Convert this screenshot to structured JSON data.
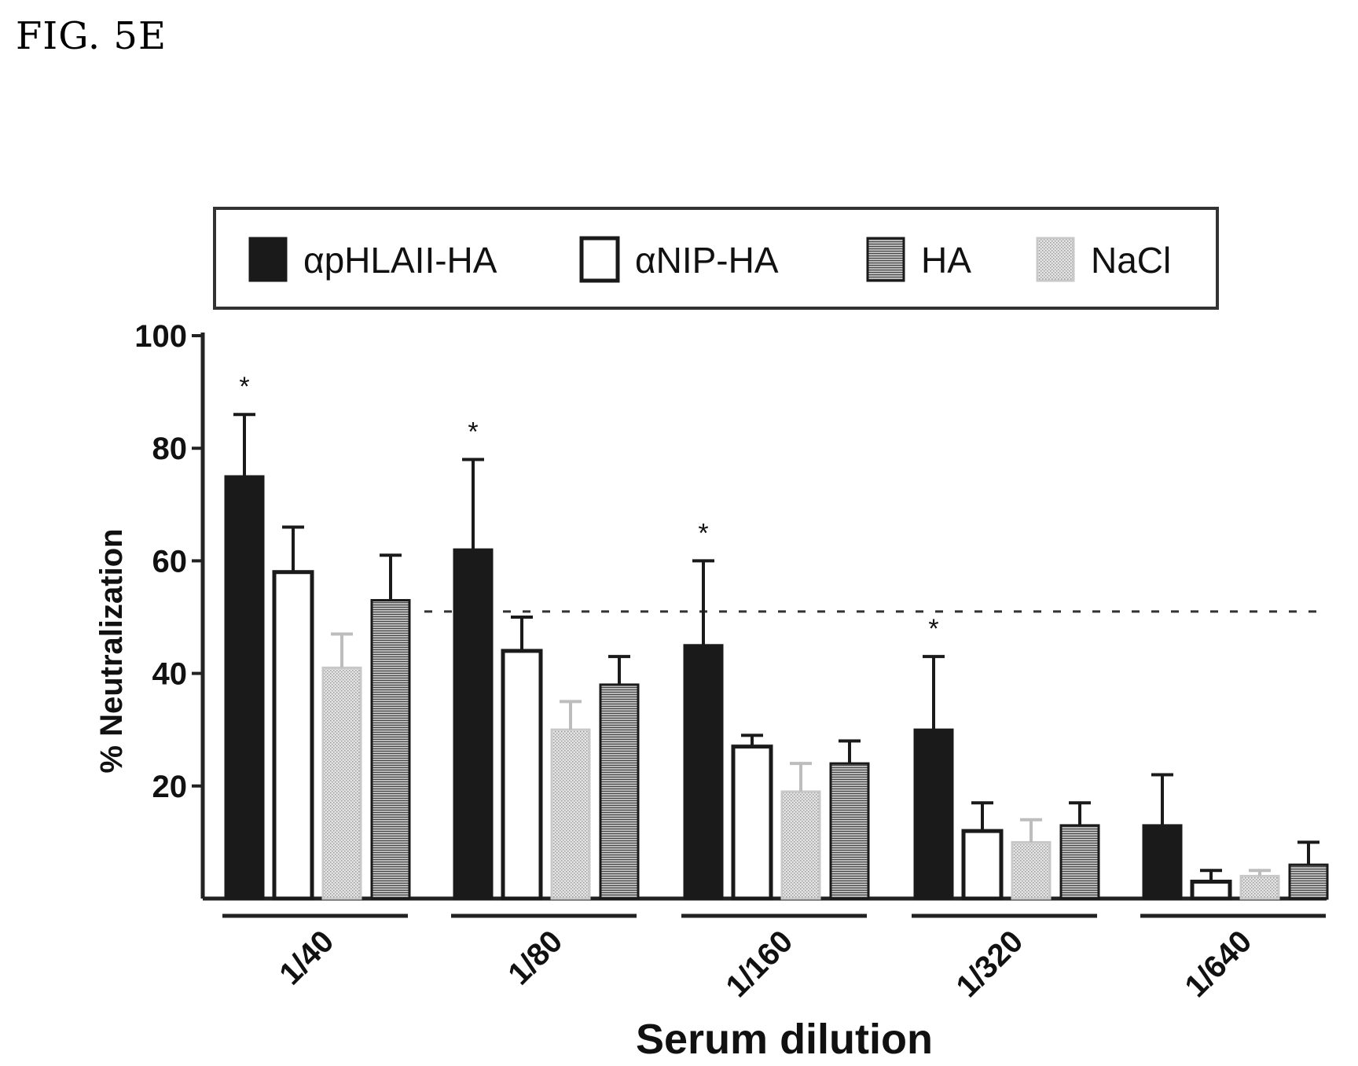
{
  "figure_label": "FIG. 5E",
  "chart_data": {
    "type": "bar",
    "title": "",
    "xlabel": "Serum dilution",
    "ylabel": "% Neutralization",
    "ylim": [
      0,
      100
    ],
    "yticks": [
      "20",
      "40",
      "60",
      "80",
      "100"
    ],
    "reference_line": 51,
    "legend_position": "top",
    "categories": [
      "1/40",
      "1/80",
      "1/160",
      "1/320",
      "1/640"
    ],
    "series": [
      {
        "name": "αpHLAII-HA",
        "color": "#1a1a1a",
        "pattern": "solid",
        "values": [
          75,
          62,
          45,
          30,
          13
        ],
        "errors": [
          11,
          16,
          15,
          13,
          9
        ],
        "significance": [
          "*",
          "*",
          "*",
          "*",
          ""
        ]
      },
      {
        "name": "αNIP-HA",
        "color": "#ffffff",
        "pattern": "open",
        "values": [
          58,
          44,
          27,
          12,
          3
        ],
        "errors": [
          8,
          6,
          2,
          5,
          2
        ]
      },
      {
        "name": "HA",
        "color": "#555555",
        "pattern": "hatched",
        "values": [
          53,
          38,
          24,
          13,
          6
        ],
        "errors": [
          8,
          5,
          4,
          4,
          4
        ]
      },
      {
        "name": "NaCl",
        "color": "#cfcfcf",
        "pattern": "dotted",
        "values": [
          41,
          30,
          19,
          10,
          4
        ],
        "errors": [
          6,
          5,
          5,
          4,
          1
        ]
      }
    ],
    "draw_order": [
      "αpHLAII-HA",
      "αNIP-HA",
      "NaCl",
      "HA"
    ]
  }
}
